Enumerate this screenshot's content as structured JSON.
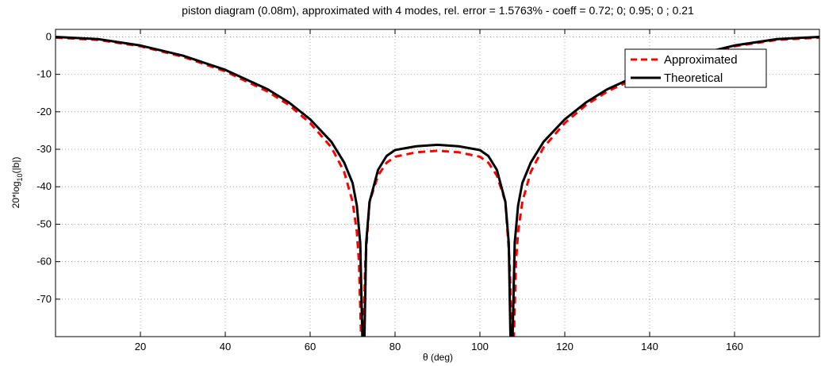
{
  "chart_data": {
    "type": "line",
    "title": "piston diagram (0.08m), approximated with 4 modes, rel. error = 1.5763% - coeff = 0.72; 0; 0.95; 0 ; 0.21",
    "xlabel": "θ (deg)",
    "ylabel_main": "20*log",
    "ylabel_sub": "10",
    "ylabel_tail": "(|b|)",
    "xlim": [
      0,
      180
    ],
    "ylim": [
      -80,
      2
    ],
    "xticks": [
      20,
      40,
      60,
      80,
      100,
      120,
      140,
      160
    ],
    "yticks": [
      0,
      -10,
      -20,
      -30,
      -40,
      -50,
      -60,
      -70
    ],
    "grid": true,
    "legend_position": "top-right",
    "series": [
      {
        "name": "Approximated",
        "color": "#ff0000",
        "style": "dashed",
        "x": [
          0,
          10,
          20,
          30,
          40,
          50,
          55,
          60,
          65,
          68,
          70,
          71,
          71.5,
          72,
          72.5,
          73,
          74,
          76,
          78,
          80,
          85,
          90,
          95,
          100,
          102,
          104,
          106,
          107,
          107.5,
          108,
          108.5,
          109,
          110,
          112,
          115,
          120,
          125,
          130,
          140,
          150,
          160,
          170,
          180
        ],
        "y": [
          -0.2,
          -0.8,
          -2.5,
          -5.3,
          -9.2,
          -14.6,
          -18.2,
          -23.0,
          -29.5,
          -36.0,
          -44.0,
          -52.0,
          -60.0,
          -80.0,
          -80.0,
          -60.0,
          -44.0,
          -37.0,
          -33.6,
          -32.0,
          -30.8,
          -30.4,
          -30.8,
          -32.0,
          -33.6,
          -37.0,
          -44.0,
          -60.0,
          -80.0,
          -80.0,
          -60.0,
          -52.0,
          -44.0,
          -36.0,
          -29.5,
          -23.0,
          -18.2,
          -14.6,
          -9.2,
          -5.3,
          -2.5,
          -0.8,
          -0.2
        ]
      },
      {
        "name": "Theoretical",
        "color": "#000000",
        "style": "solid",
        "x": [
          0,
          10,
          20,
          30,
          40,
          50,
          55,
          60,
          65,
          68,
          70,
          71,
          71.8,
          72.3,
          72.8,
          73.2,
          74,
          76,
          78,
          80,
          85,
          90,
          95,
          100,
          102,
          104,
          106,
          106.8,
          107.2,
          107.7,
          108.2,
          109,
          110,
          112,
          115,
          120,
          125,
          130,
          140,
          150,
          160,
          170,
          180
        ],
        "y": [
          0,
          -0.6,
          -2.3,
          -5.0,
          -8.8,
          -14.0,
          -17.5,
          -22.0,
          -28.0,
          -33.5,
          -39.0,
          -45.0,
          -55.0,
          -80.0,
          -80.0,
          -55.0,
          -44.0,
          -35.5,
          -31.8,
          -30.2,
          -29.2,
          -28.8,
          -29.2,
          -30.2,
          -31.8,
          -35.5,
          -44.0,
          -55.0,
          -80.0,
          -80.0,
          -55.0,
          -45.0,
          -39.0,
          -33.5,
          -28.0,
          -22.0,
          -17.5,
          -14.0,
          -8.8,
          -5.0,
          -2.3,
          -0.6,
          0
        ]
      }
    ]
  }
}
